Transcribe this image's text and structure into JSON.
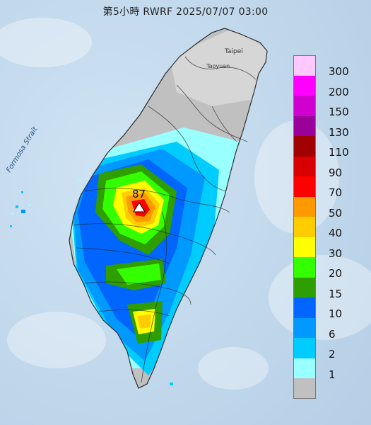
{
  "title": "第5小時 RWRF 2025/07/07 03:00",
  "places": {
    "taipei": "Taipei",
    "taoyuan": "Taoyuan",
    "strait": "Formosa Strait"
  },
  "max_marker": {
    "value": "87",
    "symbol": "triangle"
  },
  "legend": {
    "items": [
      {
        "label": "300",
        "color": "#ffc8ff"
      },
      {
        "label": "200",
        "color": "#ff00ff"
      },
      {
        "label": "150",
        "color": "#d000d0"
      },
      {
        "label": "130",
        "color": "#9a009a"
      },
      {
        "label": "110",
        "color": "#a00000"
      },
      {
        "label": "90",
        "color": "#d80000"
      },
      {
        "label": "70",
        "color": "#ff0000"
      },
      {
        "label": "50",
        "color": "#ff9900"
      },
      {
        "label": "40",
        "color": "#ffcc00"
      },
      {
        "label": "30",
        "color": "#ffff00"
      },
      {
        "label": "20",
        "color": "#33ff00"
      },
      {
        "label": "15",
        "color": "#2e9e00"
      },
      {
        "label": "10",
        "color": "#0066ff"
      },
      {
        "label": "6",
        "color": "#0099ff"
      },
      {
        "label": "2",
        "color": "#00ccff"
      },
      {
        "label": "1",
        "color": "#99ffff"
      },
      {
        "label": "",
        "color": "#c0c0c0"
      }
    ]
  }
}
